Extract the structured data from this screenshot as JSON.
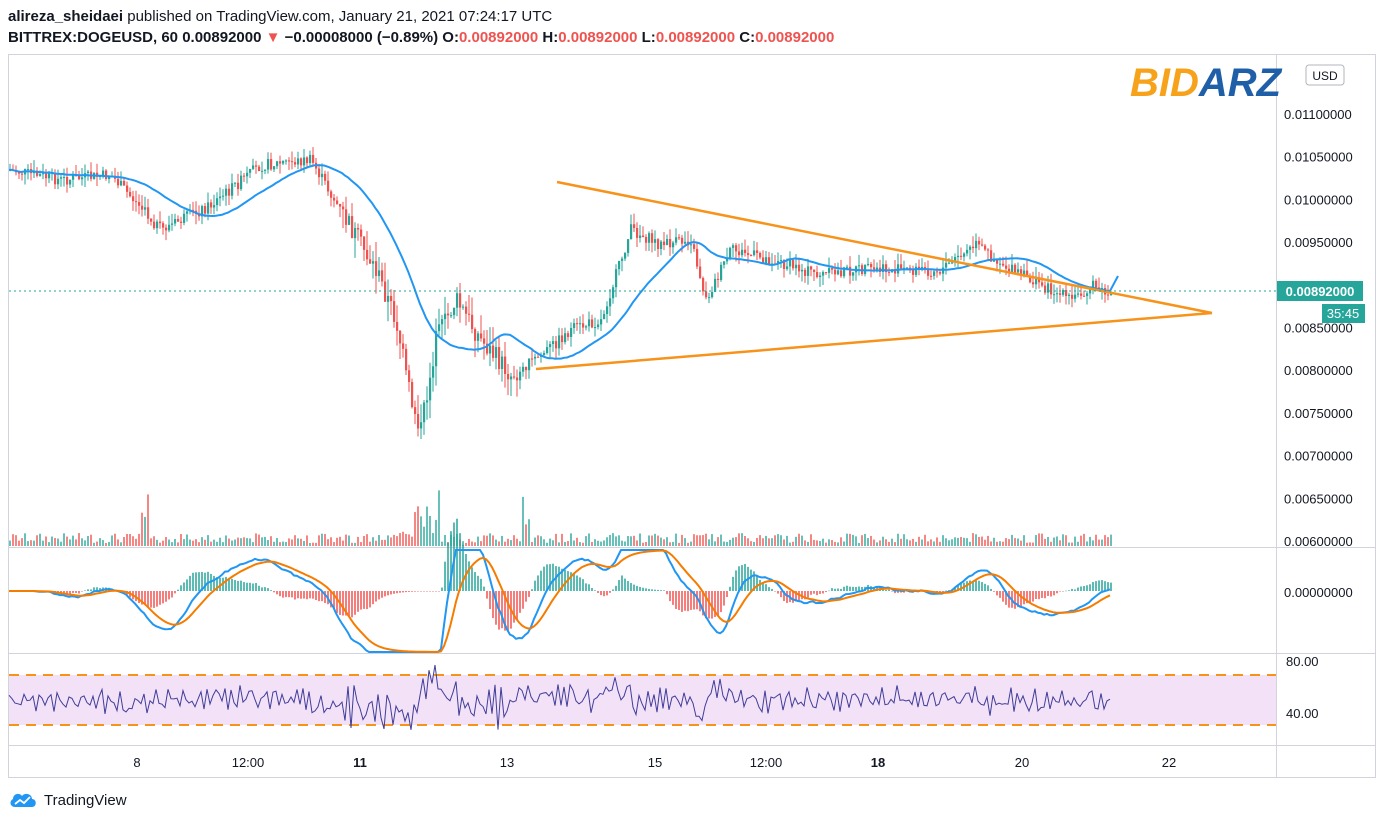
{
  "header": {
    "author": "alireza_sheidaei",
    "published_text": "published on TradingView.com, January 21, 2021 07:24:17 UTC",
    "symbol": "BITTREX:DOGEUSD, 60",
    "last": "0.00892000",
    "change": "−0.00008000 (−0.89%)",
    "o_label": "O:",
    "o": "0.00892000",
    "h_label": "H:",
    "h": "0.00892000",
    "l_label": "L:",
    "l": "0.00892000",
    "c_label": "C:",
    "c": "0.00892000"
  },
  "watermark": {
    "part1": "BID",
    "part2": "ARZ"
  },
  "footer": {
    "brand": "TradingView"
  },
  "colors": {
    "up": "#26a69a",
    "down": "#ef5350",
    "ma": "#2196f3",
    "trend": "#f7931a",
    "macd": "#2196f3",
    "signal": "#f57c00",
    "rsi": "#3f3d99",
    "rsi_band": "#f3e1f7",
    "rsi_level": "#f7931a"
  },
  "chart_data": [
    {
      "type": "candlestick",
      "symbol": "BITTREX:DOGEUSD",
      "interval": "60",
      "currency": "USD",
      "y_ticks": [
        "0.01100000",
        "0.01050000",
        "0.01000000",
        "0.00950000",
        "0.00900000",
        "0.00850000",
        "0.00800000",
        "0.00750000",
        "0.00700000",
        "0.00650000",
        "0.00600000"
      ],
      "ylim": [
        0.00594,
        0.01165
      ],
      "x_ticks": [
        "8",
        "12:00",
        "11",
        "13",
        "15",
        "12:00",
        "18",
        "20",
        "22"
      ],
      "x_ticks_bold": [
        "11",
        "18"
      ],
      "last_price_label": "0.00892000",
      "countdown": "35:45",
      "trendlines": [
        {
          "from": [
            "Jan 13 ~12:00",
            0.01022
          ],
          "to": [
            "Jan 22 ~12:00",
            0.00868
          ]
        },
        {
          "from": [
            "Jan 13 ~09:00",
            0.00803
          ],
          "to": [
            "Jan 22 ~12:00",
            0.00868
          ]
        }
      ]
    },
    {
      "type": "line",
      "indicator": "MACD",
      "y_ticks": [
        "0.00000000"
      ],
      "series": [
        {
          "values": []
        },
        {
          "values": []
        }
      ]
    },
    {
      "type": "line",
      "indicator": "RSI",
      "y_ticks": [
        "80.00",
        "40.00"
      ],
      "band": [
        70,
        30
      ]
    }
  ]
}
